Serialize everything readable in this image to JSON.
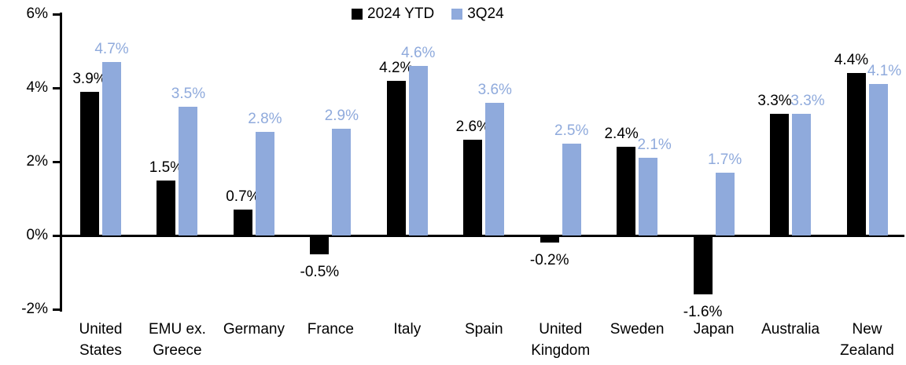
{
  "chart_data": {
    "type": "bar",
    "title": "",
    "legend": {
      "position": "top-center",
      "entries": [
        "2024 YTD",
        "3Q24"
      ]
    },
    "categories": [
      "United States",
      "EMU ex. Greece",
      "Germany",
      "France",
      "Italy",
      "Spain",
      "United Kingdom",
      "Sweden",
      "Japan",
      "Australia",
      "New Zealand"
    ],
    "category_label_lines": [
      [
        "United",
        "States"
      ],
      [
        "EMU ex.",
        "Greece"
      ],
      [
        "Germany"
      ],
      [
        "France"
      ],
      [
        "Italy"
      ],
      [
        "Spain"
      ],
      [
        "United",
        "Kingdom"
      ],
      [
        "Sweden"
      ],
      [
        "Japan"
      ],
      [
        "Australia"
      ],
      [
        "New",
        "Zealand"
      ]
    ],
    "series": [
      {
        "name": "2024 YTD",
        "color": "#000000",
        "values": [
          3.9,
          1.5,
          0.7,
          -0.5,
          4.2,
          2.6,
          -0.2,
          2.4,
          -1.6,
          3.3,
          4.4
        ],
        "labels": [
          "3.9%",
          "1.5%",
          "0.7%",
          "-0.5%",
          "4.2%",
          "2.6%",
          "-0.2%",
          "2.4%",
          "-1.6%",
          "3.3%",
          "4.4%"
        ]
      },
      {
        "name": "3Q24",
        "color": "#8FAADC",
        "values": [
          4.7,
          3.5,
          2.8,
          2.9,
          4.6,
          3.6,
          2.5,
          2.1,
          1.7,
          3.3,
          4.1
        ],
        "labels": [
          "4.7%",
          "3.5%",
          "2.8%",
          "2.9%",
          "4.6%",
          "3.6%",
          "2.5%",
          "2.1%",
          "1.7%",
          "3.3%",
          "4.1%"
        ]
      }
    ],
    "y_axis": {
      "min": -2,
      "max": 6,
      "unit": "%",
      "ticks": [
        6,
        4,
        2,
        0,
        -2
      ],
      "tick_labels": [
        "6%",
        "4%",
        "2%",
        "0%",
        "-2%"
      ]
    },
    "grid": false,
    "background": "#FFFFFF",
    "axis_color": "#000000"
  }
}
